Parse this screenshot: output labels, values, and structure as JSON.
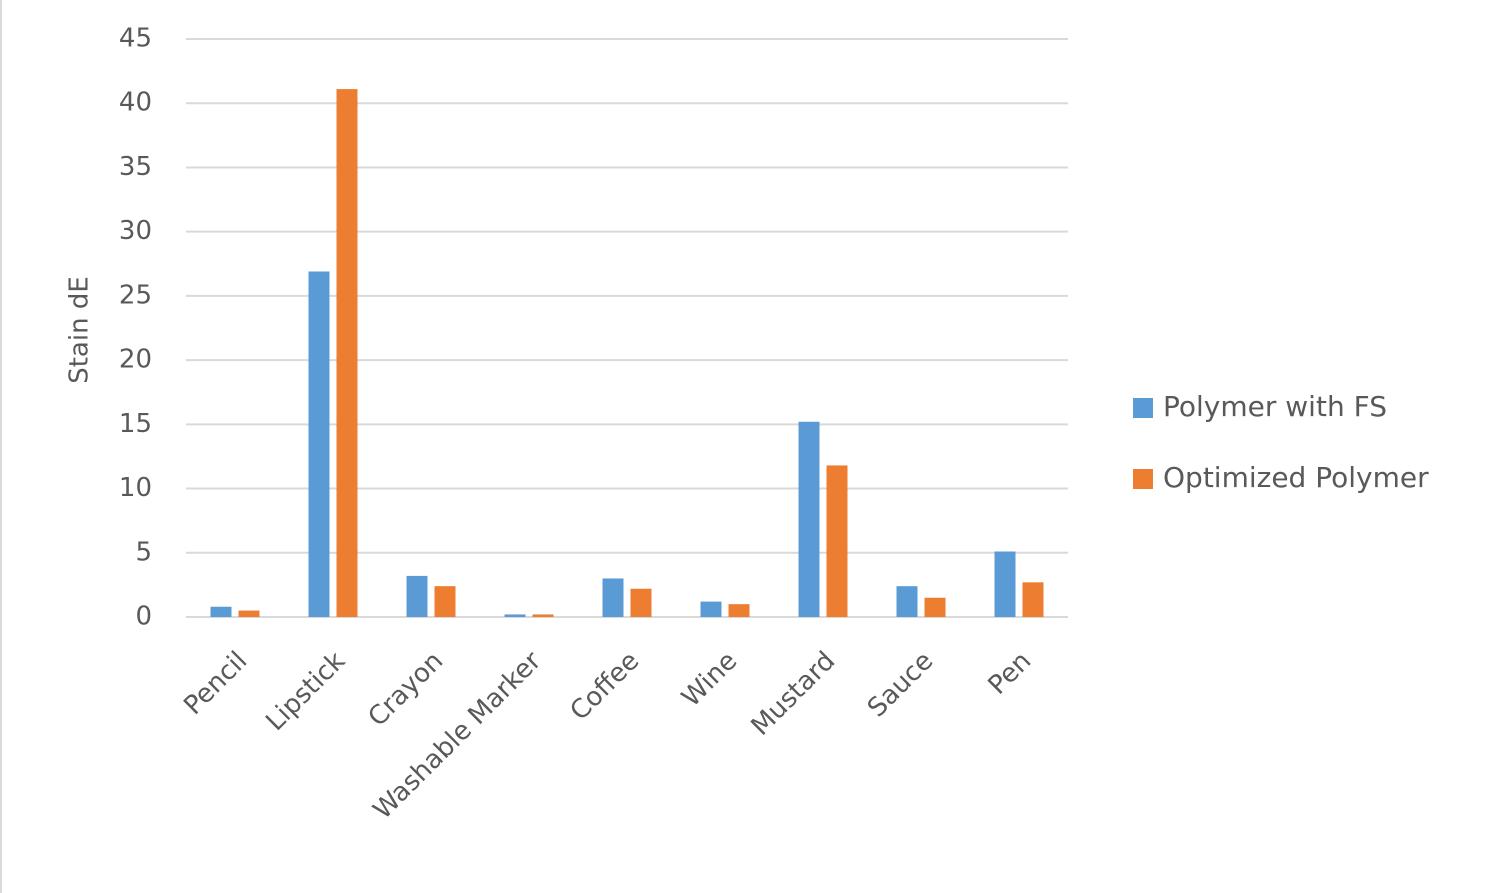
{
  "chart_data": {
    "type": "bar",
    "y_label": "Stain dE",
    "categories": [
      "Pencil",
      "Lipstick",
      "Crayon",
      "Washable Marker",
      "Coffee",
      "Wine",
      "Mustard",
      "Sauce",
      "Pen"
    ],
    "series": [
      {
        "name": "Polymer with FS",
        "color": "#5b9bd5",
        "values": [
          0.8,
          26.9,
          3.2,
          0.2,
          3.0,
          1.2,
          15.2,
          2.4,
          5.1
        ]
      },
      {
        "name": "Optimized Polymer",
        "color": "#ed7d31",
        "values": [
          0.5,
          41.1,
          2.4,
          0.2,
          2.2,
          1.0,
          11.8,
          1.5,
          2.7
        ]
      }
    ],
    "ylim": [
      0,
      45
    ],
    "yticks": [
      0,
      5,
      10,
      15,
      20,
      25,
      30,
      35,
      40,
      45
    ],
    "grid": true,
    "legend": "right"
  }
}
